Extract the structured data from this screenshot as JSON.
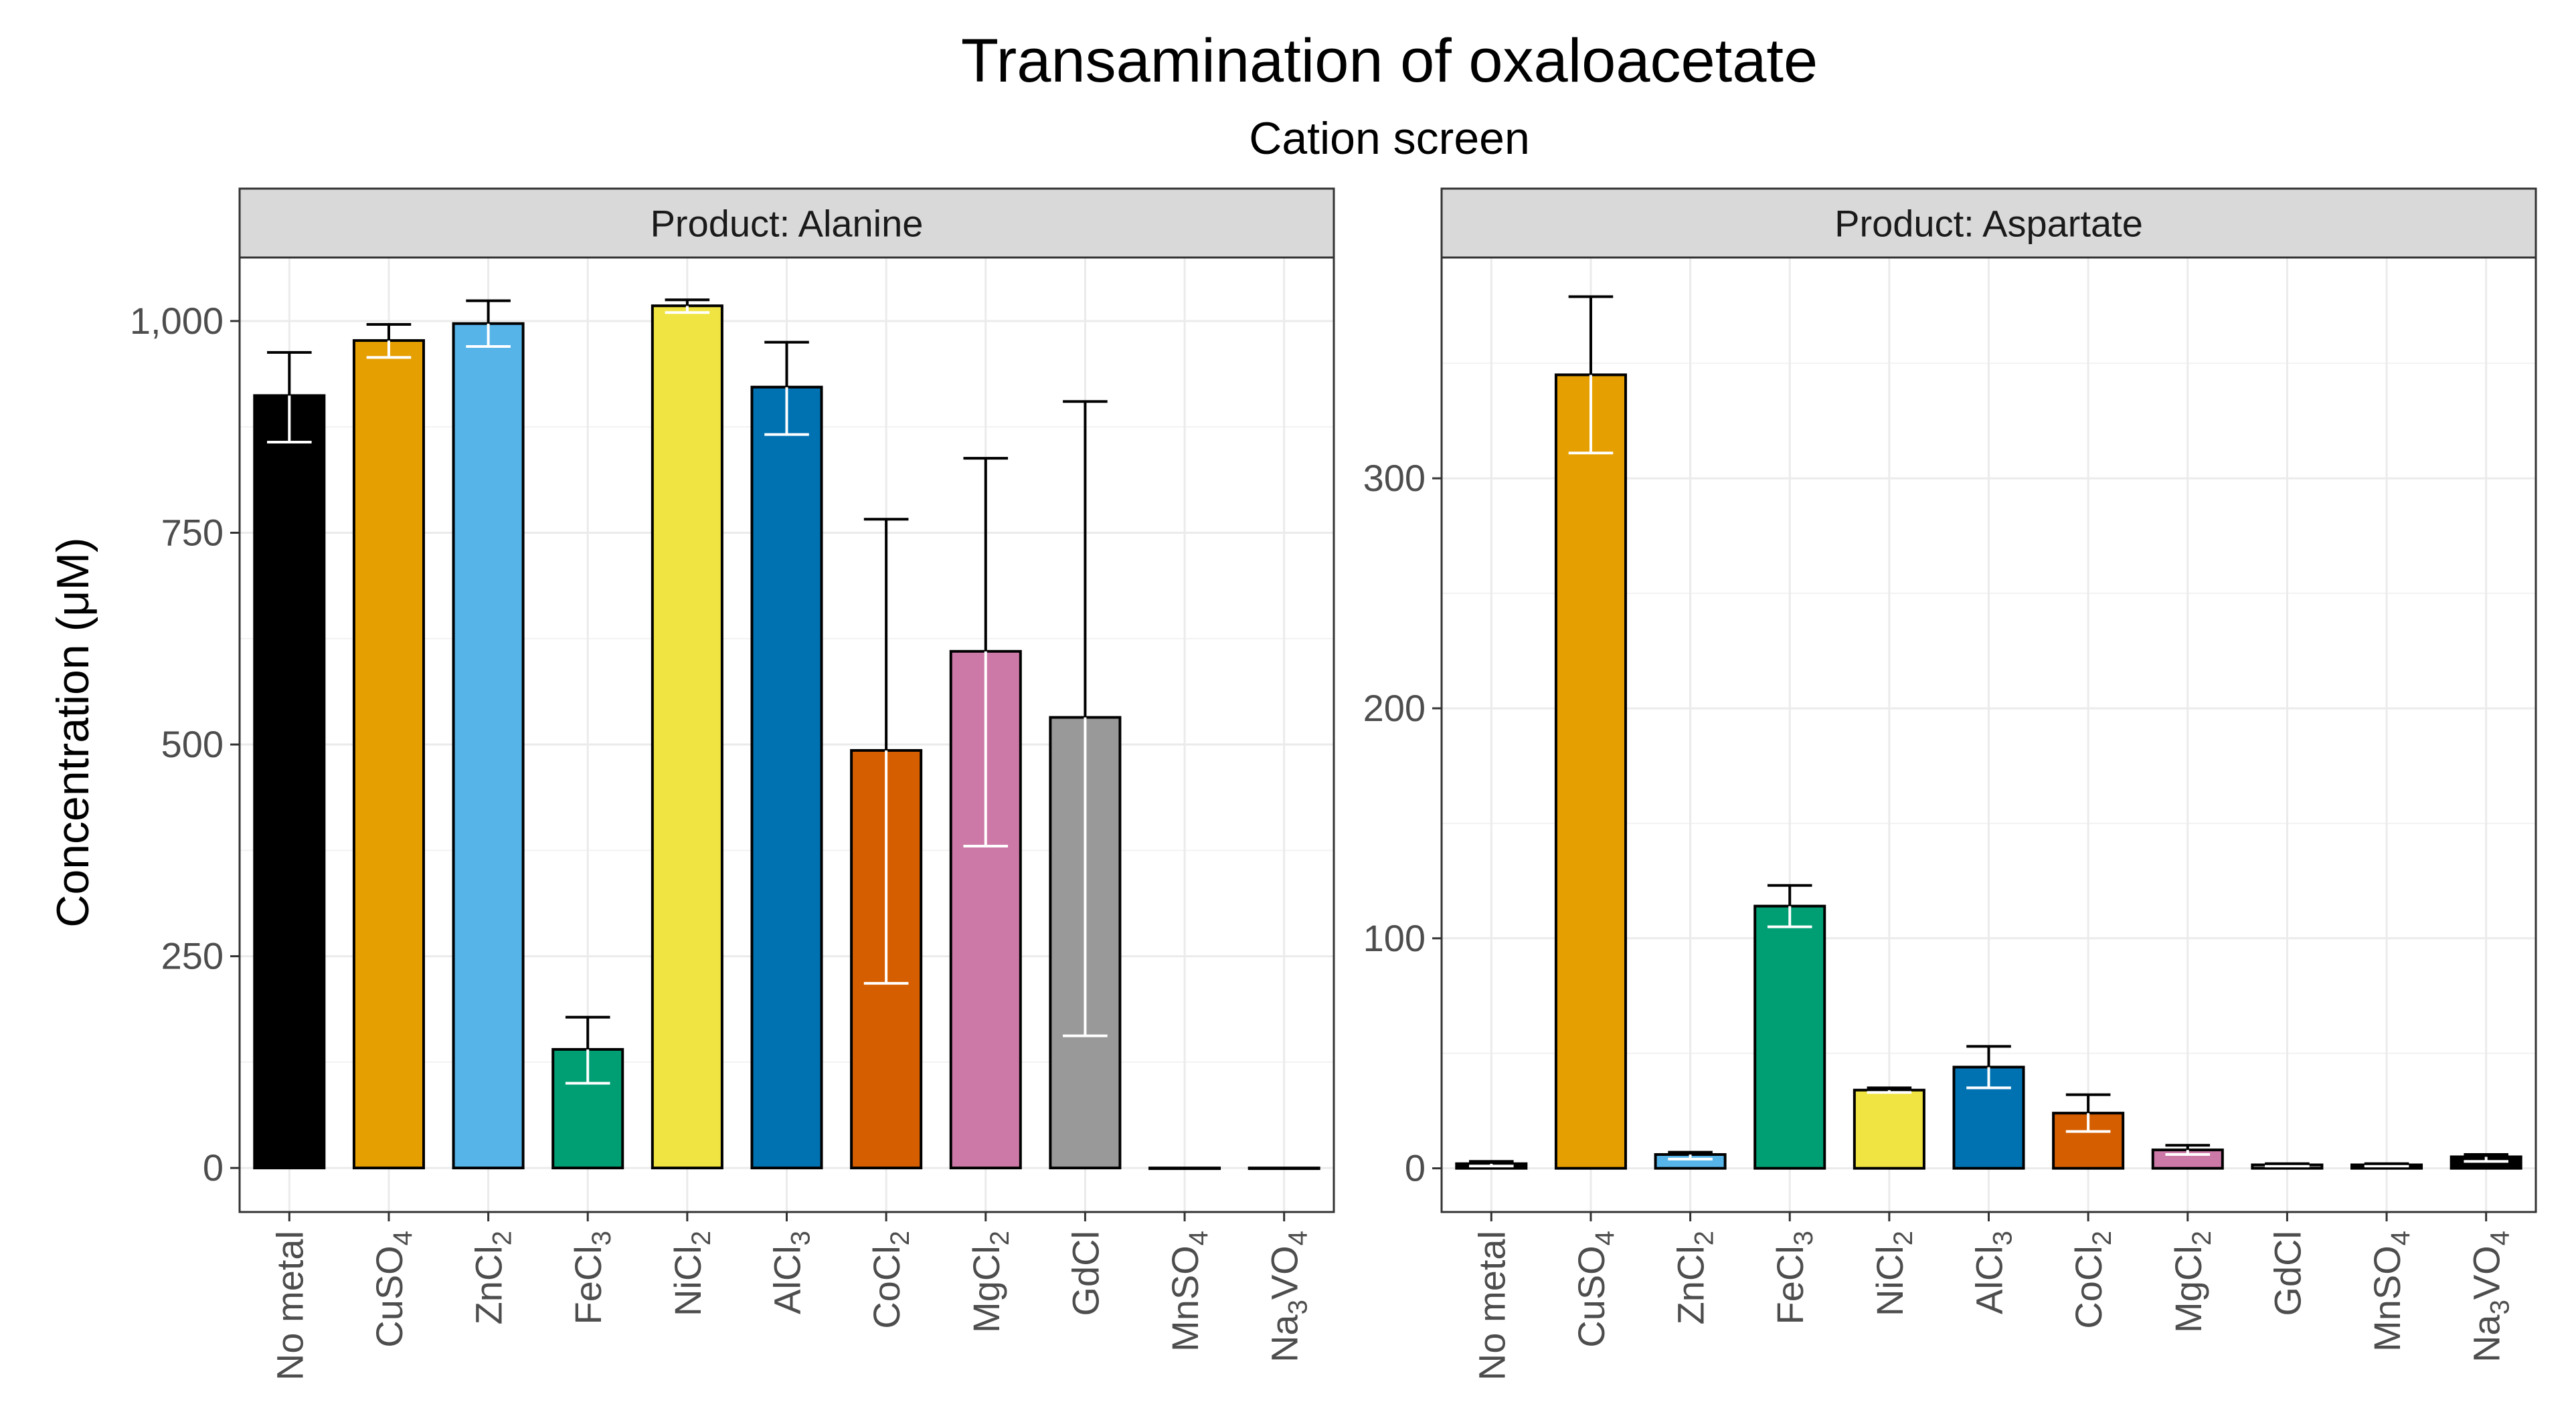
{
  "chart_data": {
    "type": "bar",
    "title": "Transamination of oxaloacetate",
    "subtitle": "Cation screen",
    "ylabel": "Concentration (μM)",
    "categories": [
      "No metal",
      "CuSO4",
      "ZnCl2",
      "FeCl3",
      "NiCl2",
      "AlCl3",
      "CoCl2",
      "MgCl2",
      "GdCl",
      "MnSO4",
      "Na3VO4"
    ],
    "category_labels": [
      [
        {
          "t": "No metal"
        }
      ],
      [
        {
          "t": "CuSO"
        },
        {
          "t": "4",
          "sub": true
        }
      ],
      [
        {
          "t": "ZnCl"
        },
        {
          "t": "2",
          "sub": true
        }
      ],
      [
        {
          "t": "FeCl"
        },
        {
          "t": "3",
          "sub": true
        }
      ],
      [
        {
          "t": "NiCl"
        },
        {
          "t": "2",
          "sub": true
        }
      ],
      [
        {
          "t": "AlCl"
        },
        {
          "t": "3",
          "sub": true
        }
      ],
      [
        {
          "t": "CoCl"
        },
        {
          "t": "2",
          "sub": true
        }
      ],
      [
        {
          "t": "MgCl"
        },
        {
          "t": "2",
          "sub": true
        }
      ],
      [
        {
          "t": "GdCl"
        }
      ],
      [
        {
          "t": "MnSO"
        },
        {
          "t": "4",
          "sub": true
        }
      ],
      [
        {
          "t": "Na"
        },
        {
          "t": "3",
          "sub": true
        },
        {
          "t": "VO"
        },
        {
          "t": "4",
          "sub": true
        }
      ]
    ],
    "colors": [
      "#000000",
      "#E69F00",
      "#56B4E9",
      "#009E73",
      "#F0E442",
      "#0072B2",
      "#D55E00",
      "#CC79A7",
      "#999999",
      "#000000",
      "#000000"
    ],
    "panels": [
      {
        "strip": "Product: Alanine",
        "ylim": [
          -52,
          1075
        ],
        "yticks": [
          0,
          250,
          500,
          750,
          1000
        ],
        "ytick_labels": [
          "0",
          "250",
          "500",
          "750",
          "1,000"
        ],
        "values": [
          912,
          977,
          997,
          140,
          1018,
          922,
          493,
          610,
          532,
          0,
          0
        ],
        "err_low": [
          857,
          957,
          970,
          100,
          1010,
          866,
          218,
          380,
          156,
          0,
          0
        ],
        "err_high": [
          963,
          996,
          1024,
          178,
          1025,
          975,
          766,
          838,
          905,
          0,
          0
        ]
      },
      {
        "strip": "Product: Aspartate",
        "ylim": [
          -19,
          396
        ],
        "yticks": [
          0,
          100,
          200,
          300
        ],
        "ytick_labels": [
          "0",
          "100",
          "200",
          "300"
        ],
        "values": [
          2,
          345,
          6,
          114,
          34,
          44,
          24,
          8,
          1.5,
          1.5,
          5
        ],
        "err_low": [
          1,
          311,
          4,
          105,
          33,
          35,
          16,
          6,
          1,
          1,
          3
        ],
        "err_high": [
          3,
          379,
          7,
          123,
          35,
          53,
          32,
          10,
          2,
          2,
          6
        ]
      }
    ]
  }
}
